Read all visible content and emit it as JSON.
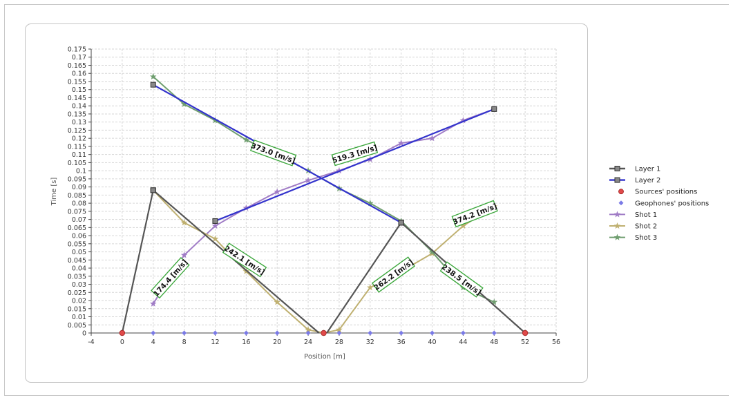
{
  "chart_data": {
    "type": "line",
    "title": "",
    "xlabel": "Position [m]",
    "ylabel": "Time [s]",
    "xlim": [
      -4,
      56
    ],
    "ylim": [
      0,
      0.175
    ],
    "xticks": [
      -4,
      0,
      4,
      8,
      12,
      16,
      20,
      24,
      28,
      32,
      36,
      40,
      44,
      48,
      52,
      56
    ],
    "yticks": [
      0,
      0.005,
      0.01,
      0.015,
      0.02,
      0.025,
      0.03,
      0.035,
      0.04,
      0.045,
      0.05,
      0.055,
      0.06,
      0.065,
      0.07,
      0.075,
      0.08,
      0.085,
      0.09,
      0.095,
      0.1,
      0.105,
      0.11,
      0.115,
      0.12,
      0.125,
      0.13,
      0.135,
      0.14,
      0.145,
      0.15,
      0.155,
      0.16,
      0.165,
      0.17,
      0.175
    ],
    "grid": true,
    "legend_position": "right",
    "series": [
      {
        "name": "Layer 1",
        "color": "#555555",
        "style": "fit-segments",
        "segments": [
          [
            [
              0,
              0
            ],
            [
              4,
              0.088
            ]
          ],
          [
            [
              4,
              0.088
            ],
            [
              25.4,
              0
            ]
          ],
          [
            [
              26.4,
              0
            ],
            [
              36,
              0.068
            ]
          ],
          [
            [
              36,
              0.068
            ],
            [
              52,
              0
            ]
          ]
        ]
      },
      {
        "name": "Layer 2",
        "color": "#3333cc",
        "style": "fit-segments",
        "segments": [
          [
            [
              12,
              0.069
            ],
            [
              48,
              0.138
            ]
          ],
          [
            [
              4,
              0.153
            ],
            [
              36,
              0.068
            ]
          ]
        ]
      },
      {
        "name": "Sources' positions",
        "color": "#e04a4a",
        "marker": "circle",
        "x": [
          0,
          26,
          52
        ],
        "y": [
          0,
          0,
          0
        ]
      },
      {
        "name": "Geophones' positions",
        "color": "#7a7ae6",
        "marker": "diamond",
        "x": [
          4,
          8,
          12,
          16,
          20,
          24,
          28,
          32,
          36,
          40,
          44,
          48
        ],
        "y": [
          0,
          0,
          0,
          0,
          0,
          0,
          0,
          0,
          0,
          0,
          0,
          0
        ]
      },
      {
        "name": "Shot 1",
        "color": "#a07cc6",
        "marker": "star",
        "x": [
          4,
          8,
          12,
          16,
          20,
          24,
          28,
          32,
          36,
          40,
          44,
          48
        ],
        "y": [
          0.018,
          0.048,
          0.066,
          0.077,
          0.087,
          0.094,
          0.1,
          0.107,
          0.117,
          0.12,
          0.131,
          0.138
        ]
      },
      {
        "name": "Shot 2",
        "color": "#bfb070",
        "marker": "star",
        "x": [
          4,
          8,
          12,
          16,
          20,
          24,
          26,
          28,
          32,
          36,
          40,
          44,
          48
        ],
        "y": [
          0.088,
          0.068,
          0.058,
          0.038,
          0.019,
          0.002,
          0,
          0.002,
          0.028,
          0.038,
          0.049,
          0.066,
          0.078
        ]
      },
      {
        "name": "Shot 3",
        "color": "#6f9e6f",
        "marker": "star",
        "x": [
          4,
          8,
          12,
          16,
          20,
          24,
          28,
          32,
          36,
          40,
          44,
          48
        ],
        "y": [
          0.158,
          0.141,
          0.131,
          0.119,
          0.11,
          0.1,
          0.089,
          0.08,
          0.069,
          0.05,
          0.028,
          0.019
        ]
      }
    ],
    "annotations": [
      {
        "text": "373.0 [m/s]",
        "x": 19.5,
        "y": 0.111,
        "angle": 20
      },
      {
        "text": "519.3 [m/s]",
        "x": 30,
        "y": 0.1105,
        "angle": -17
      },
      {
        "text": "242.1 [m/s]",
        "x": 15.8,
        "y": 0.045,
        "angle": 33
      },
      {
        "text": "174.4 [m/s]",
        "x": 6.2,
        "y": 0.034,
        "angle": -48
      },
      {
        "text": "262.2 [m/s]",
        "x": 35,
        "y": 0.036,
        "angle": -36
      },
      {
        "text": "374.2 [m/s]",
        "x": 45.5,
        "y": 0.0735,
        "angle": -21
      },
      {
        "text": "238.5 [m/s]",
        "x": 43.8,
        "y": 0.033,
        "angle": 36
      }
    ]
  }
}
